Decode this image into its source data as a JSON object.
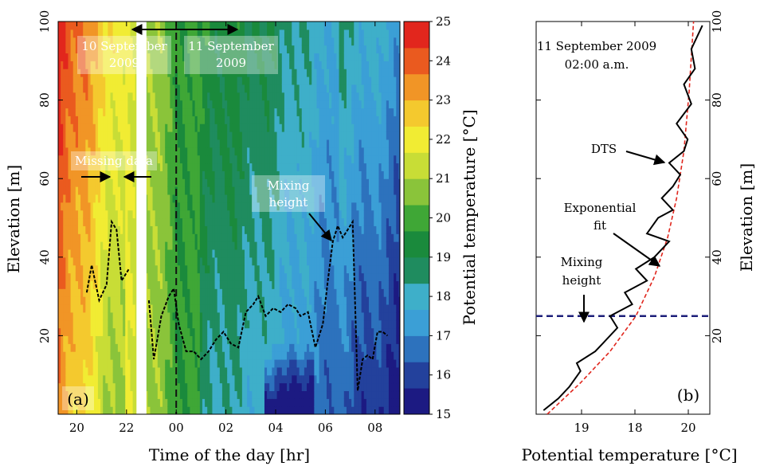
{
  "chart_data": [
    {
      "type": "heatmap",
      "panel_label": "(a)",
      "xlabel": "Time of the day [hr]",
      "ylabel": "Elevation [m]",
      "colorbar_label": "Potential temperature [°C]",
      "x_ticks": [
        "20",
        "22",
        "00",
        "02",
        "04",
        "06",
        "08"
      ],
      "x_tick_hours": [
        20,
        22,
        24,
        26,
        28,
        30,
        32
      ],
      "xlim_hours": [
        19.25,
        33.0
      ],
      "ylim": [
        0,
        100
      ],
      "y_ticks": [
        20,
        40,
        60,
        80,
        100
      ],
      "missing_data_hours": [
        22.4,
        22.8
      ],
      "day_boundary_hour": 24,
      "colorbar": {
        "range": [
          15,
          25
        ],
        "ticks": [
          15,
          16,
          17,
          18,
          19,
          20,
          21,
          22,
          23,
          24,
          25
        ],
        "colors": [
          "#1c1a82",
          "#23419c",
          "#2d72bd",
          "#3b9fd6",
          "#3eafc9",
          "#1f8c5f",
          "#1a8a3c",
          "#3fa736",
          "#8ac43a",
          "#c8dd36",
          "#f1ec33",
          "#f4c92e",
          "#f19526",
          "#ea5a1f",
          "#e2261d"
        ]
      },
      "series": [
        {
          "name": "Mixing height",
          "x_hours": [
            20.4,
            20.6,
            20.9,
            21.2,
            21.4,
            21.6,
            21.8,
            22.1,
            22.3,
            22.5,
            22.9,
            23.1,
            23.4,
            23.7,
            23.9,
            24.1,
            24.4,
            24.7,
            25.0,
            25.3,
            25.6,
            25.9,
            26.2,
            26.5,
            26.8,
            27.1,
            27.3,
            27.6,
            27.9,
            28.2,
            28.5,
            28.8,
            29.0,
            29.3,
            29.6,
            29.9,
            30.1,
            30.3,
            30.5,
            30.7,
            30.9,
            31.1,
            31.3,
            31.5,
            31.7,
            31.9,
            32.1,
            32.3,
            32.5
          ],
          "y_values": [
            31,
            38,
            29,
            33,
            49,
            47,
            34,
            37,
            null,
            null,
            29,
            14,
            25,
            30,
            32,
            23,
            16,
            16,
            14,
            16,
            19,
            21,
            18,
            17,
            26,
            28,
            30,
            25,
            27,
            26,
            28,
            27,
            25,
            26,
            17,
            23,
            34,
            44,
            48,
            45,
            47,
            49,
            6,
            14,
            15,
            14,
            21,
            21,
            20
          ]
        }
      ],
      "annotations": {
        "day1": "10 September 2009",
        "day2": "11 September 2009",
        "missing": "Missing data",
        "mixing": "Mixing height"
      }
    },
    {
      "type": "line",
      "panel_label": "(b)",
      "title": "11 September 2009 02:00 a.m.",
      "xlabel": "Potential temperature [°C]",
      "ylabel": "Elevation [m]",
      "x_ticks": [
        "19",
        "18",
        "20"
      ],
      "ylim": [
        0,
        100
      ],
      "y_ticks": [
        20,
        40,
        60,
        80,
        100
      ],
      "series": [
        {
          "name": "DTS",
          "x": [
            18.3,
            18.5,
            18.65,
            18.8,
            18.75,
            19.0,
            19.1,
            19.3,
            19.2,
            19.5,
            19.4,
            19.7,
            19.55,
            19.8,
            19.9,
            20.0,
            19.7,
            19.85,
            20.05,
            19.9,
            20.05,
            20.15,
            20.0,
            20.2,
            20.25,
            20.1,
            20.3,
            20.2,
            20.35,
            20.3,
            20.45
          ],
          "y": [
            1,
            4,
            7,
            11,
            13,
            16,
            18,
            22,
            25,
            28,
            31,
            34,
            37,
            40,
            42,
            44,
            46,
            50,
            52,
            55,
            58,
            61,
            64,
            67,
            70,
            74,
            79,
            84,
            88,
            93,
            99
          ]
        },
        {
          "name": "Exponential fit",
          "x": [
            18.35,
            18.8,
            19.2,
            19.55,
            19.8,
            19.98,
            20.1,
            20.2,
            20.27,
            20.33
          ],
          "y": [
            0,
            8,
            16,
            25,
            35,
            45,
            55,
            67,
            82,
            100
          ]
        }
      ],
      "mixing_height_m": 25,
      "annotations": {
        "dts": "DTS",
        "fit": "Exponential fit",
        "mixing": "Mixing height"
      }
    }
  ]
}
